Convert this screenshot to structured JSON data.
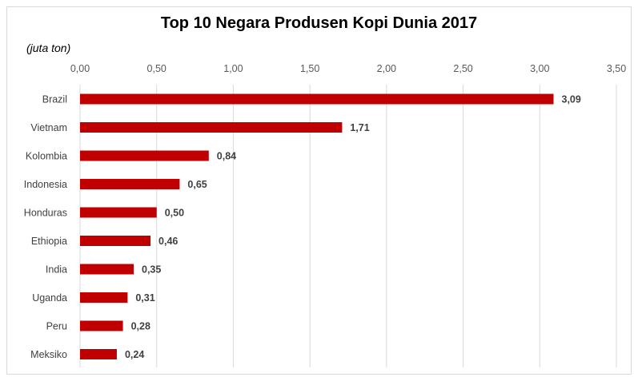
{
  "chart_data": {
    "type": "bar",
    "orientation": "horizontal",
    "title": "Top 10 Negara Produsen Kopi Dunia 2017",
    "unit_label": "(juta ton)",
    "categories": [
      "Brazil",
      "Vietnam",
      "Kolombia",
      "Indonesia",
      "Honduras",
      "Ethiopia",
      "India",
      "Uganda",
      "Peru",
      "Meksiko"
    ],
    "values": [
      3.09,
      1.71,
      0.84,
      0.65,
      0.5,
      0.46,
      0.35,
      0.31,
      0.28,
      0.24
    ],
    "data_labels": [
      "3,09",
      "1,71",
      "0,84",
      "0,65",
      "0,50",
      "0,46",
      "0,35",
      "0,31",
      "0,28",
      "0,24"
    ],
    "xlim": [
      0,
      3.5
    ],
    "x_ticks": [
      0,
      0.5,
      1.0,
      1.5,
      2.0,
      2.5,
      3.0,
      3.5
    ],
    "x_tick_labels": [
      "0,00",
      "0,50",
      "1,00",
      "1,50",
      "2,00",
      "2,50",
      "3,00",
      "3,50"
    ],
    "axis_position": "top",
    "grid": true,
    "bar_color": "#c00000",
    "grid_color": "#d9d9d9"
  }
}
